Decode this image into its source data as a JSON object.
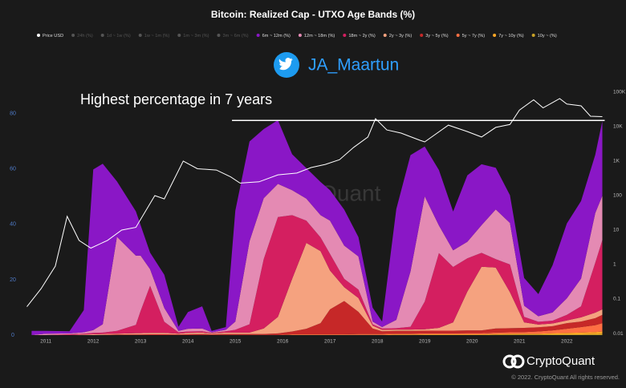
{
  "chart_data": {
    "type": "area",
    "stacked": true,
    "title": "Bitcoin: Realized Cap - UTXO Age Bands (%)",
    "legend_hidden": [
      "24h (%)",
      "1d ~ 1w (%)",
      "1w ~ 1m (%)",
      "1m ~ 3m (%)",
      "3m ~ 6m (%)"
    ],
    "x": [
      2010.7,
      2011.0,
      2011.5,
      2011.8,
      2012.0,
      2012.2,
      2012.5,
      2012.9,
      2013.0,
      2013.2,
      2013.5,
      2013.8,
      2014.0,
      2014.3,
      2014.5,
      2014.8,
      2015.0,
      2015.3,
      2015.6,
      2015.9,
      2016.2,
      2016.5,
      2016.8,
      2017.0,
      2017.3,
      2017.6,
      2017.9,
      2018.1,
      2018.4,
      2018.7,
      2019.0,
      2019.3,
      2019.6,
      2019.9,
      2020.2,
      2020.5,
      2020.8,
      2021.1,
      2021.4,
      2021.7,
      2022.0,
      2022.3,
      2022.6,
      2022.75
    ],
    "xlim": [
      2010.54,
      2022.86
    ],
    "xticks": [
      2011,
      2012,
      2013,
      2014,
      2015,
      2016,
      2017,
      2018,
      2019,
      2020,
      2021,
      2022
    ],
    "ylim": [
      0,
      88
    ],
    "yticks": [
      0,
      20,
      40,
      60,
      80
    ],
    "y2lim": [
      0.009,
      105000
    ],
    "y2_log": true,
    "y2ticks": [
      {
        "value": 100000,
        "label": "100K"
      },
      {
        "value": 10000,
        "label": "10K"
      },
      {
        "value": 1000,
        "label": "1K"
      },
      100,
      10,
      1,
      0.1,
      0.01
    ],
    "series": [
      {
        "name": "6m ~ 12m (%)",
        "color": "#8a17c6",
        "values": [
          1.5,
          1,
          0.8,
          8,
          58,
          58,
          20,
          16,
          11,
          6,
          12,
          1.5,
          6,
          8,
          0.5,
          1,
          40,
          36,
          25,
          23,
          13,
          11,
          12,
          11,
          13,
          7,
          5,
          2,
          40,
          42,
          18,
          20,
          14,
          24,
          22,
          15,
          10,
          10,
          8,
          17,
          27,
          28,
          21,
          27
        ]
      },
      {
        "name": "12m ~ 18m (%)",
        "color": "#e48ab3",
        "values": [
          0,
          0.5,
          0.3,
          0.5,
          1,
          3,
          34,
          25,
          20,
          6,
          5,
          0.5,
          1,
          1,
          0.2,
          0.5,
          3,
          30,
          22,
          12,
          9,
          8,
          8,
          12,
          12,
          12,
          1,
          0.5,
          3,
          20,
          38,
          10,
          6,
          6,
          10,
          18,
          15,
          4,
          2,
          3,
          6,
          10,
          18,
          16
        ]
      },
      {
        "name": "18m ~ 2y (%)",
        "color": "#d41f60",
        "values": [
          0,
          0,
          0.3,
          0.3,
          0.5,
          0.5,
          1,
          3,
          8,
          17,
          4,
          0.5,
          0.5,
          0.5,
          0.2,
          0.5,
          1,
          3,
          25,
          36,
          23,
          8,
          5,
          6,
          3,
          3,
          0.5,
          0.5,
          0.5,
          1,
          10,
          27,
          20,
          12,
          5,
          3,
          10,
          2,
          1,
          1,
          2,
          4,
          18,
          25
        ]
      },
      {
        "name": "2y ~ 3y (%)",
        "color": "#f5a27f",
        "values": [
          0,
          0,
          0,
          0.2,
          0.3,
          0.3,
          0.3,
          0.5,
          0.5,
          0.5,
          0.5,
          0.3,
          0.5,
          0.5,
          0.3,
          0.5,
          0.5,
          0.5,
          2,
          6,
          19,
          31,
          26,
          14,
          5,
          5,
          1,
          0.5,
          0.5,
          0.5,
          0.5,
          1,
          3,
          14,
          23,
          22,
          13,
          2,
          1,
          1,
          1,
          1.5,
          2,
          2
        ]
      },
      {
        "name": "3y ~ 5y (%)",
        "color": "#c62828",
        "values": [
          0,
          0,
          0,
          0,
          0,
          0.1,
          0.2,
          0.2,
          0.2,
          0.3,
          0.3,
          0.2,
          0.3,
          0.3,
          0.2,
          0.3,
          0.3,
          0.3,
          0.3,
          0.5,
          1,
          2,
          4,
          9,
          12,
          8,
          2,
          1,
          1,
          1,
          1,
          1,
          1,
          1,
          1,
          1.5,
          1.5,
          1.5,
          1.5,
          1.5,
          2,
          2,
          2.5,
          3
        ]
      },
      {
        "name": "5y ~ 7y (%)",
        "color": "#ff7043",
        "values": [
          0,
          0,
          0,
          0,
          0,
          0,
          0,
          0,
          0,
          0,
          0,
          0,
          0,
          0.1,
          0.1,
          0.1,
          0.1,
          0.1,
          0.1,
          0.1,
          0.2,
          0.2,
          0.2,
          0.2,
          0.2,
          0.3,
          0.3,
          0.3,
          0.3,
          0.3,
          0.3,
          0.3,
          0.3,
          0.4,
          0.4,
          0.5,
          0.5,
          0.6,
          0.8,
          1,
          1.5,
          2,
          2.5,
          3
        ]
      },
      {
        "name": "7y ~ 10y (%)",
        "color": "#ffa726",
        "values": [
          0,
          0,
          0,
          0,
          0,
          0,
          0,
          0,
          0,
          0,
          0,
          0,
          0,
          0,
          0,
          0,
          0,
          0,
          0,
          0,
          0.1,
          0.1,
          0.1,
          0.1,
          0.1,
          0.1,
          0.1,
          0.1,
          0.2,
          0.2,
          0.2,
          0.2,
          0.2,
          0.2,
          0.2,
          0.2,
          0.3,
          0.3,
          0.3,
          0.4,
          0.5,
          0.6,
          0.7,
          0.8
        ]
      },
      {
        "name": "10y ~ (%)",
        "color": "#c9a227",
        "values": [
          0,
          0,
          0,
          0,
          0,
          0,
          0,
          0,
          0,
          0,
          0,
          0,
          0,
          0,
          0,
          0,
          0,
          0,
          0,
          0,
          0,
          0,
          0,
          0,
          0,
          0,
          0,
          0,
          0,
          0,
          0.1,
          0.1,
          0.1,
          0.1,
          0.1,
          0.2,
          0.2,
          0.2,
          0.2,
          0.3,
          0.3,
          0.3,
          0.4,
          0.5
        ]
      },
      {
        "name": "Price USD",
        "color": "#ffffff",
        "axis": "y2",
        "x": [
          2010.6,
          2010.9,
          2011.2,
          2011.45,
          2011.7,
          2011.95,
          2012.3,
          2012.6,
          2012.9,
          2013.3,
          2013.5,
          2013.9,
          2014.2,
          2014.6,
          2014.9,
          2015.1,
          2015.5,
          2015.9,
          2016.3,
          2016.6,
          2016.9,
          2017.2,
          2017.5,
          2017.8,
          2017.96,
          2018.2,
          2018.5,
          2018.9,
          2019.0,
          2019.5,
          2019.9,
          2020.2,
          2020.5,
          2020.8,
          2021.0,
          2021.3,
          2021.5,
          2021.85,
          2022.0,
          2022.3,
          2022.5,
          2022.75
        ],
        "values": [
          0.06,
          0.2,
          0.9,
          25,
          5,
          3,
          5,
          10,
          12,
          100,
          80,
          1000,
          600,
          550,
          350,
          230,
          250,
          400,
          450,
          650,
          800,
          1100,
          2500,
          5000,
          17000,
          8000,
          6500,
          4000,
          3600,
          11000,
          7200,
          5000,
          9500,
          11500,
          30000,
          60000,
          35000,
          65000,
          45000,
          40000,
          20000,
          19500
        ]
      }
    ],
    "annotation_line": {
      "y": 77.5,
      "x": [
        2014.93,
        2022.8
      ],
      "color": "#ffffff"
    },
    "annotation": "Highest percentage in 7 years",
    "twitter_handle": "JA_Maartun",
    "watermark": "CryptoQuant",
    "brand": "CryptoQuant",
    "copyright": "© 2022. CryptoQuant All rights reserved."
  }
}
